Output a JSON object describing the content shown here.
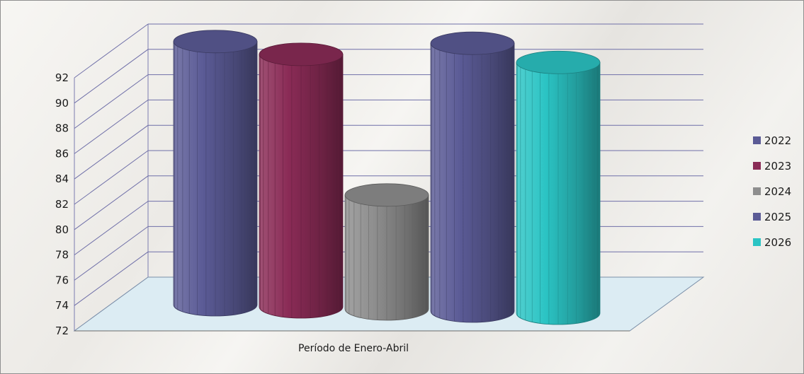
{
  "chart_data": {
    "type": "bar",
    "title": "",
    "xlabel": "Período de Enero-Abril",
    "ylabel": "",
    "categories": [
      "Período de Enero-Abril"
    ],
    "series": [
      {
        "name": "2022",
        "values": [
          91.9
        ],
        "color": "#5b5b96"
      },
      {
        "name": "2023",
        "values": [
          91.0
        ],
        "color": "#8a2b56"
      },
      {
        "name": "2024",
        "values": [
          80.0
        ],
        "color": "#8e8e8e"
      },
      {
        "name": "2025",
        "values": [
          92.1
        ],
        "color": "#5b5b96"
      },
      {
        "name": "2026",
        "values": [
          90.7
        ],
        "color": "#2bc4c4"
      }
    ],
    "ylim": [
      72,
      92
    ],
    "yticks": [
      72,
      74,
      76,
      78,
      80,
      82,
      84,
      86,
      88,
      90,
      92
    ],
    "shape": "cylinder-3d",
    "grid": true,
    "legend_position": "right",
    "floor_color": "#dcecf3"
  }
}
